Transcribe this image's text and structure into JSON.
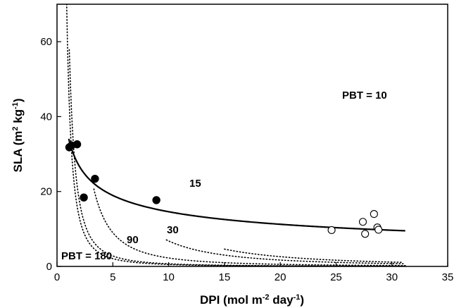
{
  "chart_data": {
    "type": "scatter",
    "xlabel": {
      "main": "DPI (mol m",
      "sup1": "-2",
      "mid": " day",
      "sup2": "-1",
      "end": ")"
    },
    "ylabel": {
      "main": "SLA (m",
      "sup1": "2",
      "mid": " kg",
      "sup2": "-1",
      "end": ")"
    },
    "xlim": [
      0,
      35
    ],
    "ylim": [
      0,
      70
    ],
    "xticks": [
      0,
      5,
      10,
      15,
      20,
      25,
      30,
      35
    ],
    "yticks": [
      0,
      20,
      40,
      60
    ],
    "grid": false,
    "series": [
      {
        "marker": "filled-circle",
        "x": [
          1.1,
          1.3,
          1.8,
          2.4,
          3.4,
          8.9
        ],
        "y": [
          31.8,
          32.3,
          32.6,
          18.4,
          23.4,
          17.7
        ]
      },
      {
        "marker": "open-circle",
        "x": [
          24.6,
          27.4,
          27.6,
          28.4,
          28.7,
          28.8
        ],
        "y": [
          9.7,
          11.9,
          8.7,
          14.0,
          10.4,
          9.8
        ]
      }
    ],
    "fit_line": {
      "style": "solid",
      "a": 34.7,
      "b": -0.376,
      "x_range": [
        1.05,
        31.2
      ]
    },
    "pbt_curves": [
      {
        "label": "PBT = 10",
        "k": 1040,
        "x_range": [
          15.0,
          31.0
        ]
      },
      {
        "label": "15",
        "k": 680,
        "x_range": [
          9.8,
          31.2
        ]
      },
      {
        "label": "30",
        "k": 225,
        "x_range": [
          3.3,
          31.2
        ]
      },
      {
        "label": "90",
        "k": 70,
        "x_range": [
          1.1,
          31.2
        ]
      },
      {
        "label": "PBT = 180",
        "k": 52,
        "x_range": [
          0.75,
          31.2
        ]
      }
    ]
  }
}
